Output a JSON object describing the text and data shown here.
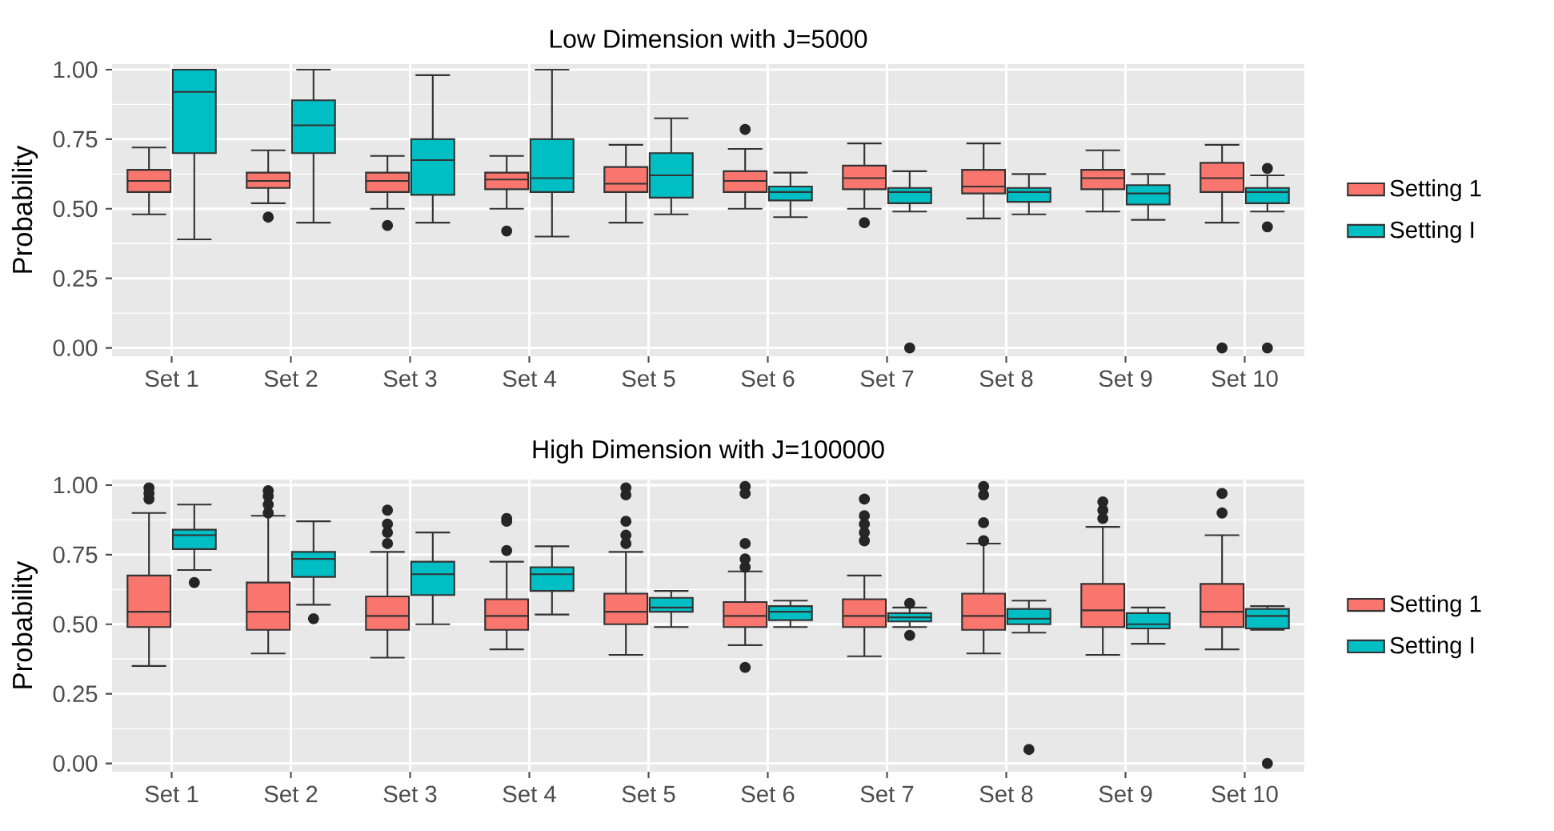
{
  "chart_data": [
    {
      "type": "box",
      "title": "Low Dimension with J=5000",
      "ylabel": "Probability",
      "categories": [
        "Set 1",
        "Set 2",
        "Set 3",
        "Set 4",
        "Set 5",
        "Set 6",
        "Set 7",
        "Set 8",
        "Set 9",
        "Set 10"
      ],
      "ylim": [
        -0.03,
        1.02
      ],
      "yticks": [
        {
          "value": 0,
          "label": "0.00"
        },
        {
          "value": 0.25,
          "label": "0.25"
        },
        {
          "value": 0.5,
          "label": "0.50"
        },
        {
          "value": 0.75,
          "label": "0.75"
        },
        {
          "value": 1,
          "label": "1.00"
        }
      ],
      "grid": true,
      "legend": "right",
      "series": [
        {
          "name": "Setting 1",
          "color": "#f8766d",
          "boxes": [
            {
              "low": 0.48,
              "q1": 0.56,
              "median": 0.6,
              "q3": 0.64,
              "high": 0.72
            },
            {
              "low": 0.52,
              "q1": 0.575,
              "median": 0.6,
              "q3": 0.63,
              "high": 0.71,
              "outliers": [
                0.47
              ]
            },
            {
              "low": 0.5,
              "q1": 0.56,
              "median": 0.6,
              "q3": 0.63,
              "high": 0.69,
              "outliers": [
                0.44
              ]
            },
            {
              "low": 0.5,
              "q1": 0.57,
              "median": 0.605,
              "q3": 0.63,
              "high": 0.69,
              "outliers": [
                0.42
              ]
            },
            {
              "low": 0.45,
              "q1": 0.56,
              "median": 0.59,
              "q3": 0.65,
              "high": 0.73
            },
            {
              "low": 0.5,
              "q1": 0.56,
              "median": 0.6,
              "q3": 0.635,
              "high": 0.715,
              "outliers": [
                0.785
              ]
            },
            {
              "low": 0.5,
              "q1": 0.57,
              "median": 0.61,
              "q3": 0.655,
              "high": 0.735,
              "outliers": [
                0.45
              ]
            },
            {
              "low": 0.465,
              "q1": 0.555,
              "median": 0.58,
              "q3": 0.64,
              "high": 0.735
            },
            {
              "low": 0.49,
              "q1": 0.57,
              "median": 0.61,
              "q3": 0.64,
              "high": 0.71
            },
            {
              "low": 0.45,
              "q1": 0.56,
              "median": 0.61,
              "q3": 0.665,
              "high": 0.73,
              "outliers": [
                0.0
              ]
            }
          ]
        },
        {
          "name": "Setting I",
          "color": "#00bfc4",
          "boxes": [
            {
              "low": 0.39,
              "q1": 0.7,
              "median": 0.92,
              "q3": 1.0,
              "high": 1.0
            },
            {
              "low": 0.45,
              "q1": 0.7,
              "median": 0.8,
              "q3": 0.89,
              "high": 1.0
            },
            {
              "low": 0.45,
              "q1": 0.55,
              "median": 0.675,
              "q3": 0.75,
              "high": 0.98
            },
            {
              "low": 0.4,
              "q1": 0.56,
              "median": 0.61,
              "q3": 0.75,
              "high": 1.0
            },
            {
              "low": 0.48,
              "q1": 0.54,
              "median": 0.62,
              "q3": 0.7,
              "high": 0.825
            },
            {
              "low": 0.47,
              "q1": 0.53,
              "median": 0.56,
              "q3": 0.58,
              "high": 0.63
            },
            {
              "low": 0.49,
              "q1": 0.52,
              "median": 0.56,
              "q3": 0.575,
              "high": 0.635,
              "outliers": [
                0.0
              ]
            },
            {
              "low": 0.48,
              "q1": 0.525,
              "median": 0.56,
              "q3": 0.575,
              "high": 0.625
            },
            {
              "low": 0.46,
              "q1": 0.515,
              "median": 0.555,
              "q3": 0.585,
              "high": 0.625
            },
            {
              "low": 0.49,
              "q1": 0.52,
              "median": 0.56,
              "q3": 0.575,
              "high": 0.62,
              "outliers": [
                0.645,
                0.435,
                0.0
              ]
            }
          ]
        }
      ]
    },
    {
      "type": "box",
      "title": "High Dimension with J=100000",
      "ylabel": "Probability",
      "categories": [
        "Set 1",
        "Set 2",
        "Set 3",
        "Set 4",
        "Set 5",
        "Set 6",
        "Set 7",
        "Set 8",
        "Set 9",
        "Set 10"
      ],
      "ylim": [
        -0.03,
        1.02
      ],
      "yticks": [
        {
          "value": 0,
          "label": "0.00"
        },
        {
          "value": 0.25,
          "label": "0.25"
        },
        {
          "value": 0.5,
          "label": "0.50"
        },
        {
          "value": 0.75,
          "label": "0.75"
        },
        {
          "value": 1,
          "label": "1.00"
        }
      ],
      "grid": true,
      "legend": "right",
      "series": [
        {
          "name": "Setting 1",
          "color": "#f8766d",
          "boxes": [
            {
              "low": 0.35,
              "q1": 0.49,
              "median": 0.545,
              "q3": 0.675,
              "high": 0.9,
              "outliers": [
                0.95,
                0.97,
                0.99
              ]
            },
            {
              "low": 0.395,
              "q1": 0.48,
              "median": 0.545,
              "q3": 0.65,
              "high": 0.89,
              "outliers": [
                0.9,
                0.93,
                0.96,
                0.98
              ]
            },
            {
              "low": 0.38,
              "q1": 0.48,
              "median": 0.53,
              "q3": 0.6,
              "high": 0.76,
              "outliers": [
                0.79,
                0.83,
                0.86,
                0.91
              ]
            },
            {
              "low": 0.41,
              "q1": 0.48,
              "median": 0.53,
              "q3": 0.59,
              "high": 0.725,
              "outliers": [
                0.765,
                0.87,
                0.88
              ]
            },
            {
              "low": 0.39,
              "q1": 0.5,
              "median": 0.545,
              "q3": 0.61,
              "high": 0.76,
              "outliers": [
                0.79,
                0.82,
                0.87,
                0.965,
                0.99
              ]
            },
            {
              "low": 0.425,
              "q1": 0.49,
              "median": 0.53,
              "q3": 0.58,
              "high": 0.69,
              "outliers": [
                0.345,
                0.705,
                0.735,
                0.79,
                0.97,
                0.995
              ]
            },
            {
              "low": 0.385,
              "q1": 0.49,
              "median": 0.53,
              "q3": 0.59,
              "high": 0.675,
              "outliers": [
                0.8,
                0.83,
                0.86,
                0.89,
                0.95
              ]
            },
            {
              "low": 0.395,
              "q1": 0.48,
              "median": 0.53,
              "q3": 0.61,
              "high": 0.79,
              "outliers": [
                0.8,
                0.865,
                0.965,
                0.995
              ]
            },
            {
              "low": 0.39,
              "q1": 0.49,
              "median": 0.55,
              "q3": 0.645,
              "high": 0.85,
              "outliers": [
                0.88,
                0.91,
                0.94
              ]
            },
            {
              "low": 0.41,
              "q1": 0.49,
              "median": 0.545,
              "q3": 0.645,
              "high": 0.82,
              "outliers": [
                0.9,
                0.97
              ]
            }
          ]
        },
        {
          "name": "Setting I",
          "color": "#00bfc4",
          "boxes": [
            {
              "low": 0.695,
              "q1": 0.77,
              "median": 0.82,
              "q3": 0.84,
              "high": 0.93,
              "outliers": [
                0.65
              ]
            },
            {
              "low": 0.57,
              "q1": 0.67,
              "median": 0.735,
              "q3": 0.76,
              "high": 0.87,
              "outliers": [
                0.52
              ]
            },
            {
              "low": 0.5,
              "q1": 0.605,
              "median": 0.68,
              "q3": 0.725,
              "high": 0.83
            },
            {
              "low": 0.535,
              "q1": 0.62,
              "median": 0.68,
              "q3": 0.705,
              "high": 0.78
            },
            {
              "low": 0.49,
              "q1": 0.545,
              "median": 0.56,
              "q3": 0.595,
              "high": 0.62
            },
            {
              "low": 0.49,
              "q1": 0.515,
              "median": 0.545,
              "q3": 0.565,
              "high": 0.585
            },
            {
              "low": 0.49,
              "q1": 0.51,
              "median": 0.525,
              "q3": 0.54,
              "high": 0.56,
              "outliers": [
                0.575,
                0.46
              ]
            },
            {
              "low": 0.47,
              "q1": 0.5,
              "median": 0.52,
              "q3": 0.555,
              "high": 0.585,
              "outliers": [
                0.05
              ]
            },
            {
              "low": 0.43,
              "q1": 0.485,
              "median": 0.5,
              "q3": 0.54,
              "high": 0.56
            },
            {
              "low": 0.48,
              "q1": 0.485,
              "median": 0.53,
              "q3": 0.555,
              "high": 0.565,
              "outliers": [
                0.0
              ]
            }
          ]
        }
      ]
    }
  ]
}
